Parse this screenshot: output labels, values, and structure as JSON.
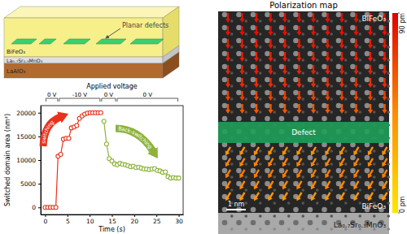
{
  "schematic": {
    "layers": [
      "BiFeO₃",
      "La₀.₇Sr₀.₃MnO₃",
      "LaAlO₃"
    ],
    "defect_label": "Planar defects"
  },
  "chart_data": {
    "type": "line",
    "x_label": "Time (s)",
    "y_label": "Switched domain area (nm²)",
    "annotation": "Applied voltage",
    "voltage_segments": [
      {
        "label": "0 V",
        "start": 0,
        "end": 3
      },
      {
        "label": "-10 V",
        "start": 3,
        "end": 12.5
      },
      {
        "label": "0 V",
        "start": 12.5,
        "end": 16
      },
      {
        "label": "0 V",
        "start": 16,
        "end": 30
      }
    ],
    "series": [
      {
        "name": "switching",
        "color": "#e8321e",
        "marker": "circle",
        "x": [
          0,
          0.6,
          1.2,
          1.8,
          2.4,
          2.9,
          3.5,
          4.1,
          4.7,
          5.3,
          5.9,
          6.5,
          7.1,
          7.7,
          8.3,
          8.9,
          9.5,
          10.1,
          10.7,
          11.3,
          11.9,
          12.5
        ],
        "values": [
          0,
          0,
          0,
          0,
          0,
          10800,
          11200,
          14400,
          14600,
          14600,
          16800,
          17000,
          17300,
          18800,
          19300,
          19700,
          19900,
          20000,
          20000,
          20000,
          20000,
          20000
        ]
      },
      {
        "name": "Back-switching",
        "color": "#8db33b",
        "marker": "circle",
        "x": [
          13.2,
          13.8,
          14.4,
          15,
          15.6,
          16.2,
          16.8,
          17.4,
          18,
          18.6,
          19.2,
          19.8,
          20.4,
          21,
          21.6,
          22.2,
          22.8,
          23.4,
          24,
          24.6,
          25.2,
          25.8,
          26.4,
          27,
          27.6,
          28.2,
          28.8,
          29.4,
          30
        ],
        "values": [
          18200,
          13400,
          10300,
          9800,
          9200,
          9000,
          9300,
          9100,
          9000,
          8800,
          8600,
          8700,
          8400,
          8500,
          8300,
          8100,
          8100,
          8000,
          8100,
          8200,
          7800,
          7700,
          7400,
          7500,
          6500,
          6200,
          6300,
          6200,
          6200
        ]
      }
    ],
    "xlim": [
      -1,
      31
    ],
    "xticks": [
      0,
      5,
      10,
      15,
      20,
      25,
      30
    ],
    "ylim": [
      -1500,
      21500
    ],
    "yticks": [
      0,
      5000,
      10000,
      15000,
      20000
    ]
  },
  "polarization_map": {
    "title": "Polarization map",
    "regions": [
      {
        "label": "BiFeO₃",
        "direction": "down",
        "row_displacements": [
          85,
          85,
          82,
          80,
          80,
          76,
          70,
          62
        ]
      },
      {
        "label": "Defect"
      },
      {
        "label": "BiFeO₃",
        "direction": "down-left",
        "row_displacements": [
          42,
          48,
          50,
          46,
          40
        ]
      },
      {
        "label": "La₀.₇Sr₀.₃MnO₃"
      }
    ],
    "scale_bar": "1 nm",
    "colorbar": {
      "range": [
        0,
        90
      ],
      "ticks": [
        {
          "value": 90,
          "label": "90 pm"
        },
        {
          "value": 0,
          "label": "0 pm"
        }
      ]
    }
  }
}
